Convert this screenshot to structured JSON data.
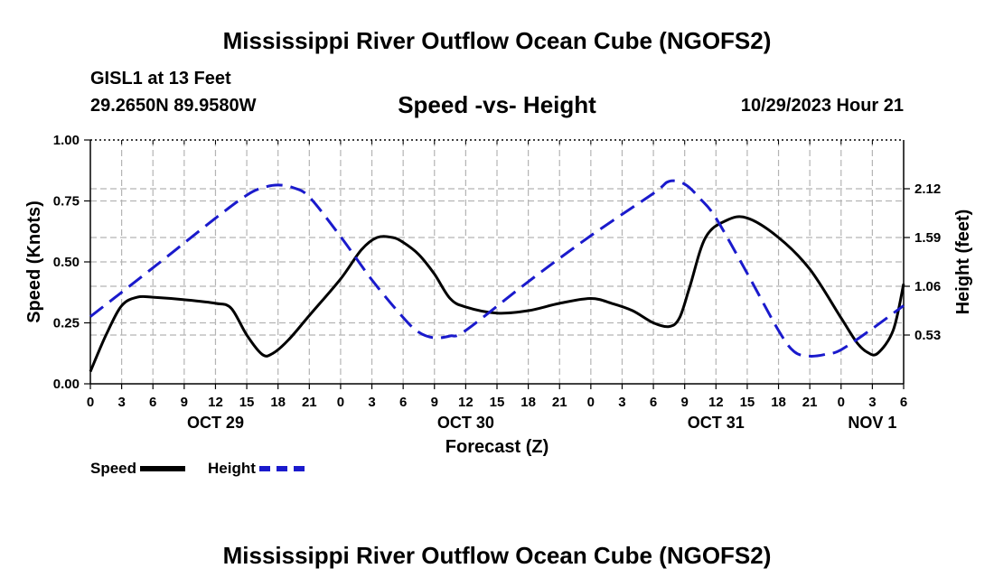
{
  "header": {
    "title": "Mississippi River Outflow Ocean Cube (NGOFS2)",
    "station": "GISL1 at 13 Feet",
    "coords": "29.2650N  89.9580W",
    "subtitle": "Speed -vs- Height",
    "datetime": "10/29/2023 Hour 21"
  },
  "footer": {
    "title": "Mississippi River Outflow Ocean Cube (NGOFS2)"
  },
  "legend": {
    "speed": "Speed",
    "height": "Height"
  },
  "colors": {
    "speed": "#000000",
    "height": "#1a1acc",
    "grid": "#b4b4b4"
  },
  "chart_data": {
    "type": "line",
    "xlabel": "Forecast (Z)",
    "ylabel_left": "Speed (Knots)",
    "ylabel_right": "Height (feet)",
    "xlim": [
      0,
      78
    ],
    "ylim_left": [
      0,
      1.0
    ],
    "ylim_right": [
      0,
      2.65
    ],
    "x_ticks": [
      0,
      3,
      6,
      9,
      12,
      15,
      18,
      21,
      24,
      27,
      30,
      33,
      36,
      39,
      42,
      45,
      48,
      51,
      54,
      57,
      60,
      63,
      66,
      69,
      72,
      75,
      78
    ],
    "x_tick_labels": [
      "0",
      "3",
      "6",
      "9",
      "12",
      "15",
      "18",
      "21",
      "0",
      "3",
      "6",
      "9",
      "12",
      "15",
      "18",
      "21",
      "0",
      "3",
      "6",
      "9",
      "12",
      "15",
      "18",
      "21",
      "0",
      "3",
      "6"
    ],
    "day_labels": [
      {
        "label": "OCT 29",
        "x": 12
      },
      {
        "label": "OCT 30",
        "x": 36
      },
      {
        "label": "OCT 31",
        "x": 60
      },
      {
        "label": "NOV 1",
        "x": 75
      }
    ],
    "y_left_ticks": [
      0,
      0.25,
      0.5,
      0.75,
      1.0
    ],
    "y_left_tick_labels": [
      "0.00",
      "0.25",
      "0.50",
      "0.75",
      "1.00"
    ],
    "y_right_ticks": [
      0.53,
      1.06,
      1.59,
      2.12
    ],
    "y_right_tick_labels": [
      "0.53",
      "1.06",
      "1.59",
      "2.12"
    ],
    "grid": true,
    "series": [
      {
        "name": "Speed",
        "axis": "left",
        "style": "solid",
        "x": [
          0,
          1.5,
          3,
          4.5,
          6,
          9,
          12,
          13.5,
          15,
          16.5,
          17.5,
          19,
          21,
          24,
          26,
          27.5,
          29,
          30,
          31.5,
          33,
          34.5,
          36,
          39,
          42,
          45,
          48,
          50,
          52,
          54,
          55.5,
          56.5,
          57.5,
          59,
          61,
          63,
          66,
          69,
          72,
          73.5,
          74.5,
          75.5,
          77,
          78
        ],
        "values": [
          0.05,
          0.2,
          0.32,
          0.355,
          0.355,
          0.345,
          0.33,
          0.31,
          0.2,
          0.12,
          0.125,
          0.18,
          0.28,
          0.43,
          0.55,
          0.6,
          0.6,
          0.58,
          0.53,
          0.45,
          0.35,
          0.315,
          0.29,
          0.3,
          0.33,
          0.35,
          0.33,
          0.3,
          0.25,
          0.235,
          0.27,
          0.4,
          0.6,
          0.67,
          0.68,
          0.6,
          0.47,
          0.27,
          0.17,
          0.13,
          0.125,
          0.22,
          0.41
        ]
      },
      {
        "name": "Height",
        "axis": "right",
        "style": "dashed",
        "x": [
          0,
          6,
          12,
          15,
          16.5,
          18,
          19.5,
          21,
          24,
          27,
          30,
          31.5,
          33,
          34.5,
          36,
          42,
          48,
          54,
          55.5,
          57,
          58.5,
          60,
          63,
          66,
          67.5,
          69,
          70.5,
          72,
          75,
          78
        ],
        "values": [
          0.73,
          1.26,
          1.8,
          2.05,
          2.13,
          2.16,
          2.13,
          2.03,
          1.6,
          1.13,
          0.72,
          0.56,
          0.5,
          0.52,
          0.58,
          1.11,
          1.61,
          2.07,
          2.2,
          2.17,
          2.01,
          1.8,
          1.2,
          0.58,
          0.35,
          0.3,
          0.32,
          0.37,
          0.6,
          0.85
        ]
      }
    ]
  }
}
